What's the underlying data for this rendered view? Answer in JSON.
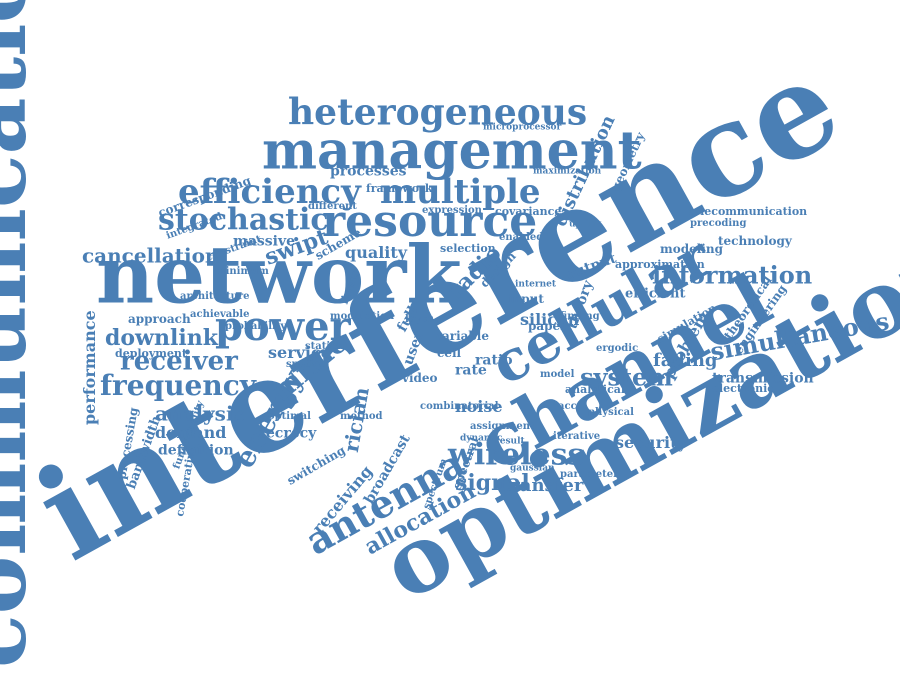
{
  "color": "#4a7fb5",
  "words": [
    "communication",
    "interference",
    "optimization",
    "network",
    "channel",
    "cellular",
    "management",
    "resource",
    "heterogeneous",
    "efficiency",
    "multiple",
    "stochastic",
    "power",
    "antenna",
    "wireless",
    "information",
    "simultaneous",
    "system",
    "frequency",
    "energy",
    "receiver",
    "downlink",
    "cancellation",
    "mimo",
    "analysis",
    "allocation",
    "signal",
    "transfer",
    "security",
    "fading",
    "transmission",
    "distribution",
    "geometry",
    "problem",
    "technology",
    "telecommunication",
    "engineering",
    "theoretical",
    "processes",
    "framework",
    "covariance",
    "maximization",
    "microprocessor",
    "corresponding",
    "massive",
    "swipt",
    "quality",
    "selection",
    "design",
    "radio",
    "output",
    "modeling",
    "efficient",
    "performance",
    "approach",
    "deployment",
    "demand",
    "definition",
    "secrecy",
    "service",
    "switching",
    "receiving",
    "broadcast",
    "rician",
    "noise",
    "ratio",
    "rate",
    "video",
    "silicon",
    "paper",
    "theory",
    "input",
    "internet",
    "ergodic",
    "electronic",
    "processing",
    "bandwidth",
    "cooperative",
    "functionality",
    "scheme",
    "layer",
    "user",
    "cell",
    "full",
    "linear",
    "spatial",
    "optimal",
    "minimum",
    "constraint",
    "achievable",
    "probability",
    "different",
    "expression",
    "enabled",
    "uplink",
    "integrated",
    "architecture",
    "precoding",
    "approximation",
    "simulation",
    "analytical",
    "assignment",
    "result",
    "iterative",
    "physical",
    "dynamic",
    "gaussian",
    "parameter",
    "combinatorial",
    "spectral",
    "spectrum",
    "modulation",
    "station",
    "model",
    "finding",
    "method",
    "variable",
    "acc",
    "matrix"
  ]
}
